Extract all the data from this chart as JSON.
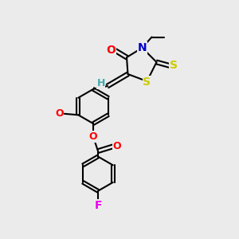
{
  "bg_color": "#ebebeb",
  "bond_color": "#000000",
  "atom_colors": {
    "O": "#ff0000",
    "N": "#0000cc",
    "S": "#cccc00",
    "F": "#ee00ee",
    "H": "#44aaaa",
    "C": "#000000"
  },
  "font_size_atom": 10,
  "line_width": 1.5,
  "dbo": 0.008,
  "fig_bg": "#ebebeb"
}
